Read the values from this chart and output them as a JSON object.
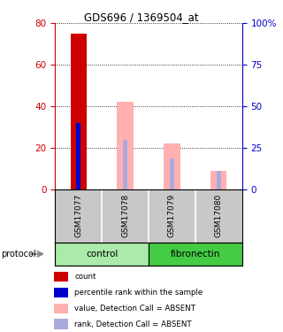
{
  "title": "GDS696 / 1369504_at",
  "samples": [
    "GSM17077",
    "GSM17078",
    "GSM17079",
    "GSM17080"
  ],
  "groups": [
    "control",
    "control",
    "fibronectin",
    "fibronectin"
  ],
  "bar_data": [
    {
      "red_value": 75,
      "blue_value": 32,
      "pink_value": null,
      "lightblue_value": null
    },
    {
      "red_value": null,
      "blue_value": null,
      "pink_value": 42,
      "lightblue_value": 24
    },
    {
      "red_value": null,
      "blue_value": null,
      "pink_value": 22,
      "lightblue_value": 15
    },
    {
      "red_value": null,
      "blue_value": null,
      "pink_value": 9,
      "lightblue_value": 9
    }
  ],
  "ylim": [
    0,
    80
  ],
  "y2lim": [
    0,
    100
  ],
  "yticks_left": [
    0,
    20,
    40,
    60,
    80
  ],
  "yticks_right": [
    0,
    25,
    50,
    75,
    100
  ],
  "ytick_labels_right": [
    "0",
    "25",
    "50",
    "75",
    "100%"
  ],
  "red_color": "#CC0000",
  "blue_color": "#0000CC",
  "pink_color": "#FFB0B0",
  "lightblue_color": "#AAAADD",
  "bar_width": 0.35,
  "legend_items": [
    {
      "label": "count",
      "color": "#CC0000"
    },
    {
      "label": "percentile rank within the sample",
      "color": "#0000CC"
    },
    {
      "label": "value, Detection Call = ABSENT",
      "color": "#FFB0B0"
    },
    {
      "label": "rank, Detection Call = ABSENT",
      "color": "#AAAADD"
    }
  ],
  "label_bg": "#C8C8C8",
  "control_color": "#AAEAAA",
  "fibronectin_color": "#44CC44",
  "left_axis_color": "#CC0000",
  "right_axis_color": "#0000CC",
  "background_color": "#ffffff"
}
